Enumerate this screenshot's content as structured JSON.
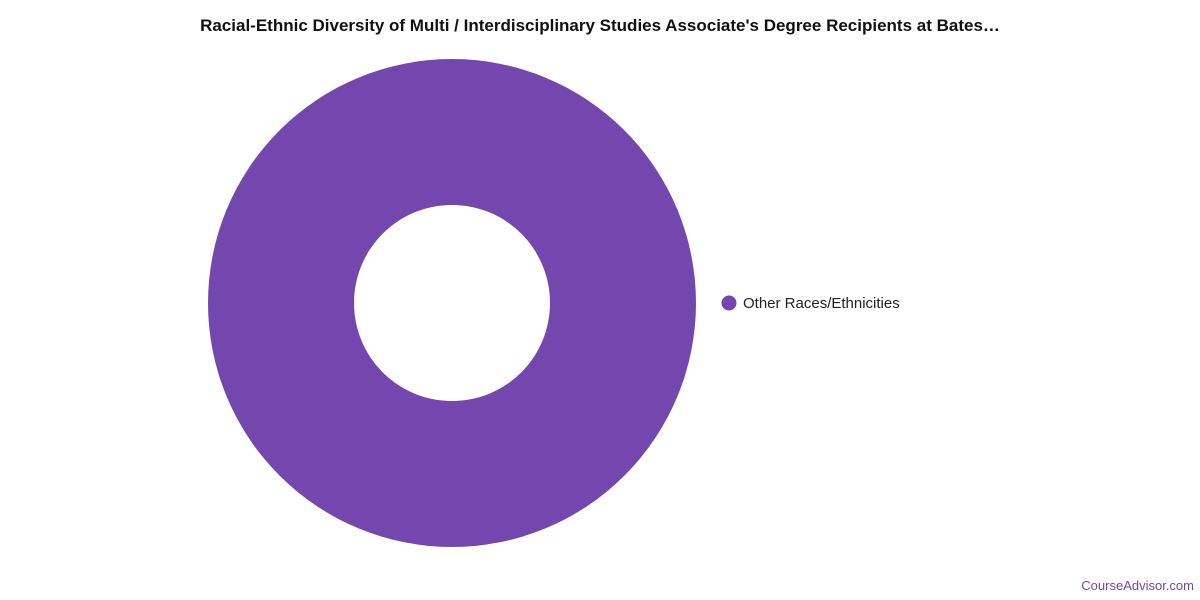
{
  "chart_data": {
    "type": "pie",
    "title": "Racial-Ethnic Diversity of Multi / Interdisciplinary Studies Associate's Degree Recipients at Bates…",
    "donut": true,
    "legend_position": "right",
    "series": [
      {
        "name": "Other Races/Ethnicities",
        "value": 100,
        "color": "#7447ae"
      }
    ]
  },
  "footer": {
    "credit": "CourseAdvisor.com",
    "credit_color": "#7447ae"
  }
}
